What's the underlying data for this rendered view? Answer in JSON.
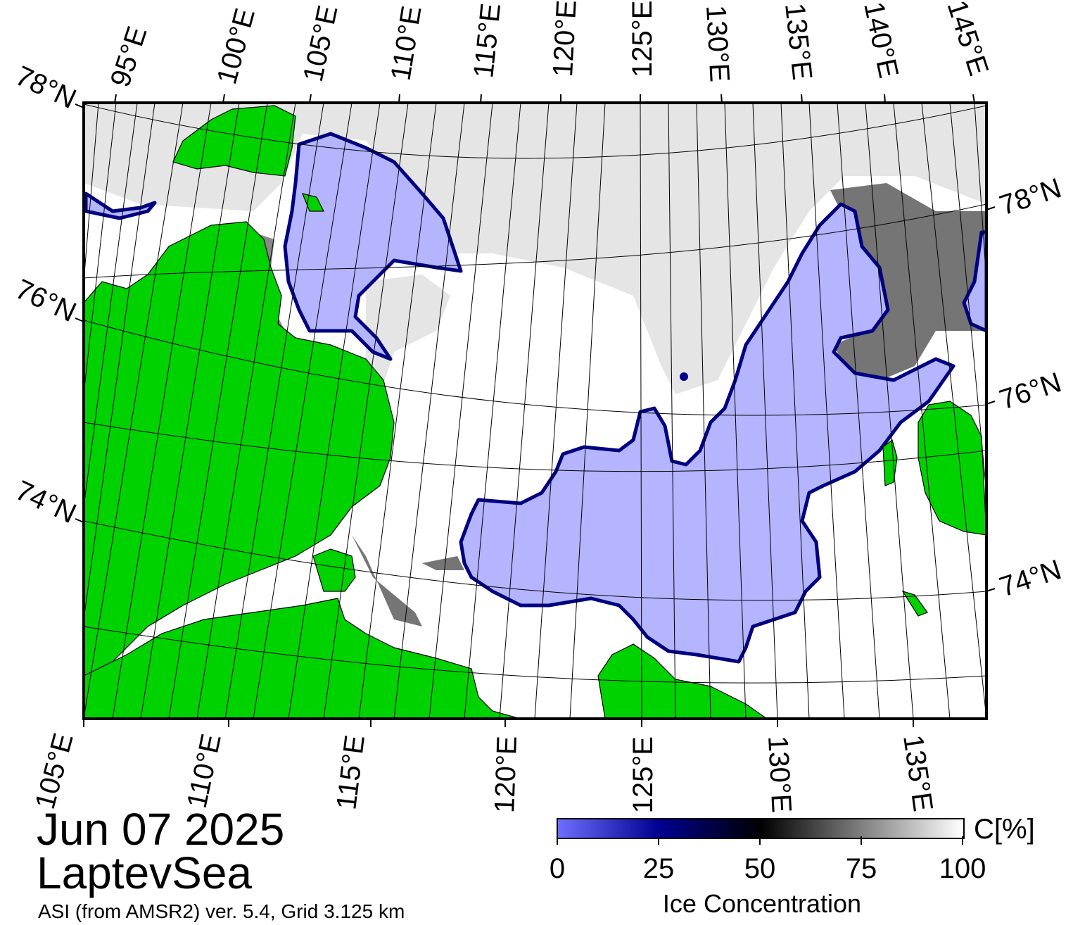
{
  "map": {
    "top_lon_labels": [
      "95°E",
      "100°E",
      "105°E",
      "110°E",
      "115°E",
      "120°E",
      "125°E",
      "130°E",
      "135°E",
      "140°E",
      "145°E"
    ],
    "bottom_lon_labels": [
      "105°E",
      "110°E",
      "115°E",
      "120°E",
      "125°E",
      "130°E",
      "135°E"
    ],
    "left_lat_labels": [
      "78°N",
      "76°N",
      "74°N"
    ],
    "right_lat_labels": [
      "78°N",
      "76°N",
      "74°N"
    ],
    "colors": {
      "land": "#00d200",
      "shore_mask": "#888888",
      "ice_zero": "#b4b4ff",
      "open_water": "#ffffff"
    }
  },
  "caption": {
    "date": "Jun 07 2025",
    "region": "LaptevSea",
    "source": "ASI (from AMSR2) ver. 5.4,  Grid 3.125 km"
  },
  "colorbar": {
    "title": "Ice Concentration",
    "unit": "C[%]",
    "ticks": [
      "0",
      "25",
      "50",
      "75",
      "100"
    ],
    "stops": [
      "#6e6eff",
      "#000090",
      "#000000",
      "#808080",
      "#ffffff"
    ]
  }
}
